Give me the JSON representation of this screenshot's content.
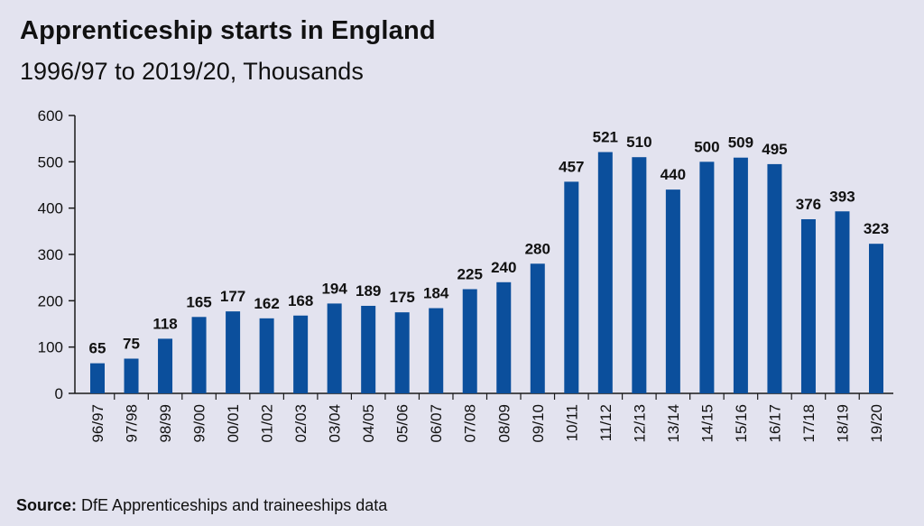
{
  "title": "Apprenticeship starts in England",
  "subtitle": "1996/97 to 2019/20, Thousands",
  "source_label": "Source:",
  "source_text": "DfE Apprenticeships and traineeships data",
  "colors": {
    "bar": "#0b4f9c",
    "axis": "#1a1a1a",
    "background": "#e3e3ef"
  },
  "chart_data": {
    "type": "bar",
    "title": "Apprenticeship starts in England",
    "subtitle": "1996/97 to 2019/20, Thousands",
    "xlabel": "",
    "ylabel": "",
    "ylim": [
      0,
      600
    ],
    "yticks": [
      0,
      100,
      200,
      300,
      400,
      500,
      600
    ],
    "grid": false,
    "categories": [
      "96/97",
      "97/98",
      "98/99",
      "99/00",
      "00/01",
      "01/02",
      "02/03",
      "03/04",
      "04/05",
      "05/06",
      "06/07",
      "07/08",
      "08/09",
      "09/10",
      "10/11",
      "11/12",
      "12/13",
      "13/14",
      "14/15",
      "15/16",
      "16/17",
      "17/18",
      "18/19",
      "19/20"
    ],
    "values": [
      65,
      75,
      118,
      165,
      177,
      162,
      168,
      194,
      189,
      175,
      184,
      225,
      240,
      280,
      457,
      521,
      510,
      440,
      500,
      509,
      495,
      376,
      393,
      323
    ],
    "data_labels": [
      "65",
      "75",
      "118",
      "165",
      "177",
      "162",
      "168",
      "194",
      "189",
      "175",
      "184",
      "225",
      "240",
      "280",
      "457",
      "521",
      "510",
      "440",
      "500",
      "509",
      "495",
      "376",
      "393",
      "323"
    ]
  }
}
